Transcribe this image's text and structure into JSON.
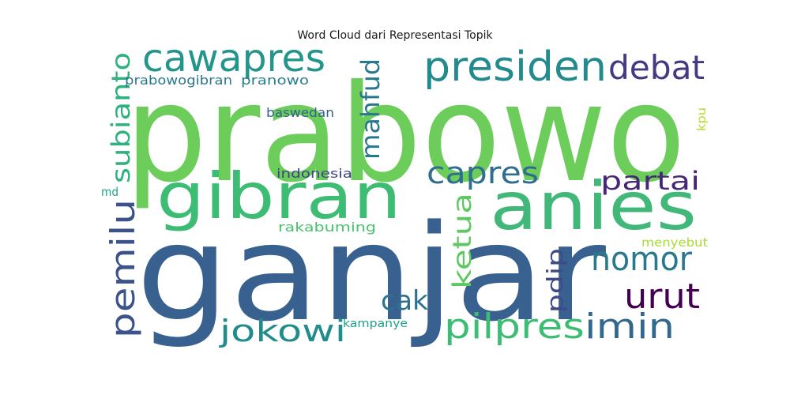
{
  "title": "Word Cloud dari Representasi Topik",
  "words": [
    {
      "text": "prabowo",
      "color": "#6ccd5a"
    },
    {
      "text": "ganjar",
      "color": "#39618f"
    },
    {
      "text": "anies",
      "color": "#42b77a"
    },
    {
      "text": "gibran",
      "color": "#3dbc74"
    },
    {
      "text": "presiden",
      "color": "#238a8d"
    },
    {
      "text": "cawapres",
      "color": "#24958b"
    },
    {
      "text": "debat",
      "color": "#443983"
    },
    {
      "text": "capres",
      "color": "#2e6f8e"
    },
    {
      "text": "partai",
      "color": "#482677"
    },
    {
      "text": "nomor",
      "color": "#2a788e"
    },
    {
      "text": "urut",
      "color": "#440154"
    },
    {
      "text": "imin",
      "color": "#31688e"
    },
    {
      "text": "pilpres",
      "color": "#3dbc74"
    },
    {
      "text": "jokowi",
      "color": "#228c8d"
    },
    {
      "text": "cak",
      "color": "#2c718e"
    },
    {
      "text": "pemilu",
      "color": "#3b528b"
    },
    {
      "text": "subianto",
      "color": "#2db27d"
    },
    {
      "text": "mahfud",
      "color": "#29798e"
    },
    {
      "text": "ketua",
      "color": "#5ec962"
    },
    {
      "text": "pdip",
      "color": "#3e4a89"
    },
    {
      "text": "prabowogibran",
      "color": "#2a788e"
    },
    {
      "text": "pranowo",
      "color": "#287d8e"
    },
    {
      "text": "baswedan",
      "color": "#33638d"
    },
    {
      "text": "indonesia",
      "color": "#414487"
    },
    {
      "text": "rakabuming",
      "color": "#4ac16d"
    },
    {
      "text": "md",
      "color": "#20a386"
    },
    {
      "text": "kpu",
      "color": "#b5de2b"
    },
    {
      "text": "menyebut",
      "color": "#a8db34"
    },
    {
      "text": "kampanye",
      "color": "#1fa188"
    }
  ]
}
